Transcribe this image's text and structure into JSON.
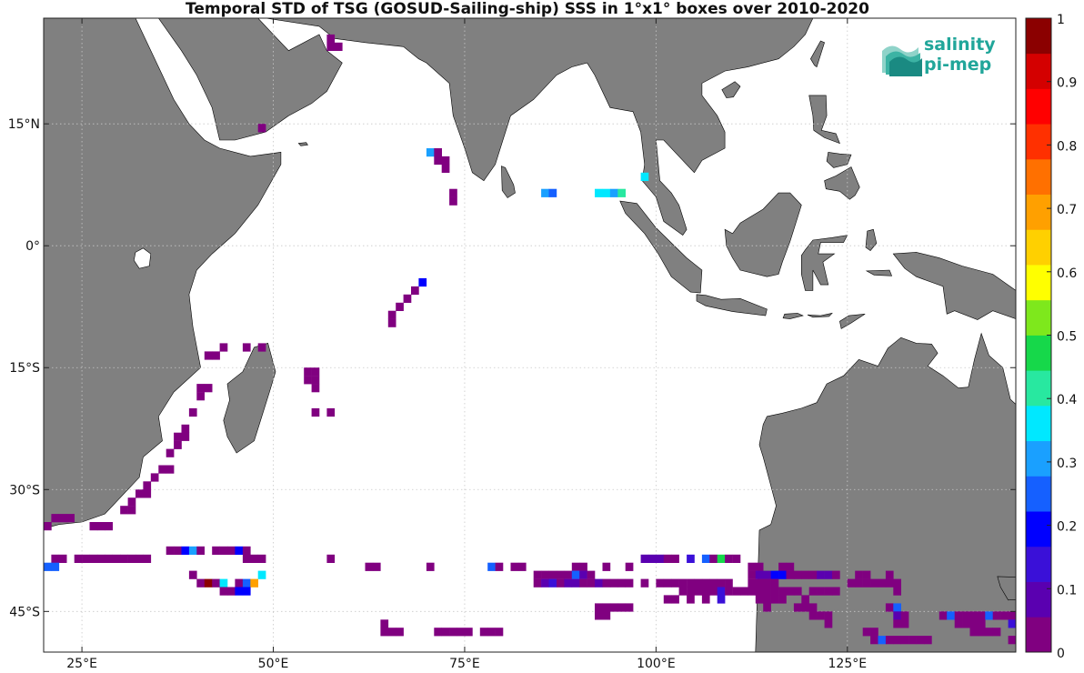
{
  "title": "Temporal STD of TSG (GOSUD-Sailing-ship) SSS in 1°x1° boxes over 2010-2020",
  "logo": {
    "line1": "salinity",
    "line2": "pi-mep"
  },
  "axes": {
    "lon_range": [
      20,
      147
    ],
    "lat_range": [
      -50,
      28
    ],
    "x_ticks": [
      {
        "v": 25,
        "label": "25°E"
      },
      {
        "v": 50,
        "label": "50°E"
      },
      {
        "v": 75,
        "label": "75°E"
      },
      {
        "v": 100,
        "label": "100°E"
      },
      {
        "v": 125,
        "label": "125°E"
      }
    ],
    "y_ticks": [
      {
        "v": 15,
        "label": "15°N"
      },
      {
        "v": 0,
        "label": "0°"
      },
      {
        "v": -15,
        "label": "15°S"
      },
      {
        "v": -30,
        "label": "30°S"
      },
      {
        "v": -45,
        "label": "45°S"
      }
    ],
    "grid": true
  },
  "colorbar": {
    "min": 0,
    "max": 1,
    "tick_labels": [
      "0",
      "0.1",
      "0.2",
      "0.3",
      "0.4",
      "0.5",
      "0.6",
      "0.7",
      "0.8",
      "0.9",
      "1"
    ],
    "colors": [
      "#800080",
      "#5a00b0",
      "#3a10d8",
      "#0000ff",
      "#1560ff",
      "#1aa0ff",
      "#00e8ff",
      "#28e8a0",
      "#16d84a",
      "#7ee81c",
      "#ffff00",
      "#ffd000",
      "#ffa000",
      "#ff7000",
      "#ff3000",
      "#ff0000",
      "#d40000",
      "#8b0000"
    ]
  },
  "land_color": "#808080",
  "cells": [
    [
      57,
      25,
      0.02
    ],
    [
      57,
      24,
      0.02
    ],
    [
      58,
      24,
      0.02
    ],
    [
      48,
      14,
      0.02
    ],
    [
      70,
      11,
      0.3
    ],
    [
      71,
      11,
      0.02
    ],
    [
      71,
      10,
      0.02
    ],
    [
      72,
      10,
      0.02
    ],
    [
      72,
      9,
      0.02
    ],
    [
      73,
      6,
      0.02
    ],
    [
      73,
      5,
      0.02
    ],
    [
      85,
      6,
      0.3
    ],
    [
      86,
      6,
      0.25
    ],
    [
      92,
      6,
      0.35
    ],
    [
      93,
      6,
      0.35
    ],
    [
      94,
      6,
      0.3
    ],
    [
      95,
      6,
      0.4
    ],
    [
      98,
      8,
      0.35
    ],
    [
      69,
      -5,
      0.2
    ],
    [
      68,
      -6,
      0.02
    ],
    [
      67,
      -7,
      0.02
    ],
    [
      66,
      -8,
      0.02
    ],
    [
      65,
      -9,
      0.02
    ],
    [
      65,
      -10,
      0.02
    ],
    [
      41,
      -14,
      0.02
    ],
    [
      42,
      -14,
      0.02
    ],
    [
      43,
      -13,
      0.02
    ],
    [
      46,
      -13,
      0.02
    ],
    [
      48,
      -13,
      0.02
    ],
    [
      54,
      -16,
      0.02
    ],
    [
      55,
      -16,
      0.02
    ],
    [
      54,
      -17,
      0.02
    ],
    [
      55,
      -17,
      0.02
    ],
    [
      55,
      -18,
      0.02
    ],
    [
      40,
      -18,
      0.02
    ],
    [
      41,
      -18,
      0.02
    ],
    [
      40,
      -19,
      0.02
    ],
    [
      39,
      -21,
      0.02
    ],
    [
      55,
      -21,
      0.05
    ],
    [
      57,
      -21,
      0.02
    ],
    [
      38,
      -23,
      0.02
    ],
    [
      38,
      -24,
      0.02
    ],
    [
      37,
      -24,
      0.02
    ],
    [
      37,
      -25,
      0.02
    ],
    [
      36,
      -26,
      0.02
    ],
    [
      36,
      -28,
      0.02
    ],
    [
      35,
      -28,
      0.02
    ],
    [
      34,
      -29,
      0.02
    ],
    [
      33,
      -30,
      0.02
    ],
    [
      33,
      -31,
      0.02
    ],
    [
      32,
      -31,
      0.02
    ],
    [
      31,
      -32,
      0.02
    ],
    [
      31,
      -33,
      0.02
    ],
    [
      30,
      -33,
      0.02
    ],
    [
      21,
      -34,
      0.02
    ],
    [
      22,
      -34,
      0.02
    ],
    [
      23,
      -34,
      0.02
    ],
    [
      20,
      -35,
      0.02
    ],
    [
      26,
      -35,
      0.02
    ],
    [
      27,
      -35,
      0.02
    ],
    [
      28,
      -35,
      0.02
    ],
    [
      36,
      -38,
      0.02
    ],
    [
      37,
      -38,
      0.02
    ],
    [
      38,
      -38,
      0.22
    ],
    [
      39,
      -38,
      0.3
    ],
    [
      40,
      -38,
      0.02
    ],
    [
      42,
      -38,
      0.02
    ],
    [
      43,
      -38,
      0.02
    ],
    [
      44,
      -38,
      0.02
    ],
    [
      45,
      -38,
      0.2
    ],
    [
      46,
      -38,
      0.05
    ],
    [
      21,
      -39,
      0.02
    ],
    [
      22,
      -39,
      0.02
    ],
    [
      24,
      -39,
      0.02
    ],
    [
      25,
      -39,
      0.02
    ],
    [
      26,
      -39,
      0.02
    ],
    [
      27,
      -39,
      0.02
    ],
    [
      28,
      -39,
      0.02
    ],
    [
      29,
      -39,
      0.02
    ],
    [
      30,
      -39,
      0.02
    ],
    [
      31,
      -39,
      0.02
    ],
    [
      32,
      -39,
      0.02
    ],
    [
      33,
      -39,
      0.02
    ],
    [
      46,
      -39,
      0.02
    ],
    [
      47,
      -39,
      0.02
    ],
    [
      48,
      -39,
      0.02
    ],
    [
      57,
      -39,
      0.02
    ],
    [
      20,
      -40,
      0.25
    ],
    [
      21,
      -40,
      0.25
    ],
    [
      62,
      -40,
      0.02
    ],
    [
      63,
      -40,
      0.02
    ],
    [
      70,
      -40,
      0.02
    ],
    [
      78,
      -40,
      0.25
    ],
    [
      79,
      -40,
      0.02
    ],
    [
      81,
      -40,
      0.02
    ],
    [
      82,
      -40,
      0.02
    ],
    [
      39,
      -41,
      0.02
    ],
    [
      48,
      -41,
      0.35
    ],
    [
      40,
      -42,
      0.02
    ],
    [
      41,
      -42,
      0.95
    ],
    [
      42,
      -42,
      0.02
    ],
    [
      43,
      -42,
      0.35
    ],
    [
      45,
      -42,
      0.02
    ],
    [
      46,
      -42,
      0.25
    ],
    [
      47,
      -42,
      0.7
    ],
    [
      43,
      -43,
      0.05
    ],
    [
      44,
      -43,
      0.05
    ],
    [
      45,
      -43,
      0.2
    ],
    [
      46,
      -43,
      0.2
    ],
    [
      98,
      -39,
      0.1
    ],
    [
      99,
      -39,
      0.1
    ],
    [
      100,
      -39,
      0.1
    ],
    [
      101,
      -39,
      0.02
    ],
    [
      102,
      -39,
      0.02
    ],
    [
      104,
      -39,
      0.15
    ],
    [
      106,
      -39,
      0.25
    ],
    [
      107,
      -39,
      0.02
    ],
    [
      108,
      -39,
      0.45
    ],
    [
      109,
      -39,
      0.02
    ],
    [
      110,
      -39,
      0.02
    ],
    [
      89,
      -40,
      0.02
    ],
    [
      90,
      -40,
      0.02
    ],
    [
      93,
      -40,
      0.02
    ],
    [
      96,
      -40,
      0.02
    ],
    [
      112,
      -40,
      0.02
    ],
    [
      113,
      -40,
      0.02
    ],
    [
      116,
      -40,
      0.02
    ],
    [
      117,
      -40,
      0.02
    ],
    [
      84,
      -41,
      0.02
    ],
    [
      85,
      -41,
      0.02
    ],
    [
      86,
      -41,
      0.02
    ],
    [
      87,
      -41,
      0.02
    ],
    [
      88,
      -41,
      0.02
    ],
    [
      89,
      -41,
      0.25
    ],
    [
      90,
      -41,
      0.1
    ],
    [
      91,
      -41,
      0.02
    ],
    [
      112,
      -41,
      0.02
    ],
    [
      113,
      -41,
      0.1
    ],
    [
      114,
      -41,
      0.1
    ],
    [
      115,
      -41,
      0.2
    ],
    [
      116,
      -41,
      0.2
    ],
    [
      117,
      -41,
      0.02
    ],
    [
      118,
      -41,
      0.02
    ],
    [
      119,
      -41,
      0.02
    ],
    [
      120,
      -41,
      0.02
    ],
    [
      121,
      -41,
      0.1
    ],
    [
      122,
      -41,
      0.1
    ],
    [
      123,
      -41,
      0.02
    ],
    [
      126,
      -41,
      0.02
    ],
    [
      127,
      -41,
      0.02
    ],
    [
      130,
      -41,
      0.02
    ],
    [
      84,
      -42,
      0.02
    ],
    [
      85,
      -42,
      0.1
    ],
    [
      86,
      -42,
      0.15
    ],
    [
      87,
      -42,
      0.02
    ],
    [
      88,
      -42,
      0.1
    ],
    [
      89,
      -42,
      0.1
    ],
    [
      90,
      -42,
      0.02
    ],
    [
      91,
      -42,
      0.05
    ],
    [
      92,
      -42,
      0.1
    ],
    [
      93,
      -42,
      0.05
    ],
    [
      94,
      -42,
      0.02
    ],
    [
      95,
      -42,
      0.02
    ],
    [
      96,
      -42,
      0.02
    ],
    [
      98,
      -42,
      0.05
    ],
    [
      100,
      -42,
      0.02
    ],
    [
      101,
      -42,
      0.02
    ],
    [
      102,
      -42,
      0.02
    ],
    [
      103,
      -42,
      0.02
    ],
    [
      104,
      -42,
      0.02
    ],
    [
      105,
      -42,
      0.02
    ],
    [
      106,
      -42,
      0.02
    ],
    [
      107,
      -42,
      0.02
    ],
    [
      108,
      -42,
      0.05
    ],
    [
      109,
      -42,
      0.05
    ],
    [
      112,
      -42,
      0.02
    ],
    [
      113,
      -42,
      0.02
    ],
    [
      114,
      -42,
      0.02
    ],
    [
      115,
      -42,
      0.02
    ],
    [
      125,
      -42,
      0.02
    ],
    [
      126,
      -42,
      0.02
    ],
    [
      127,
      -42,
      0.02
    ],
    [
      128,
      -42,
      0.02
    ],
    [
      129,
      -42,
      0.02
    ],
    [
      130,
      -42,
      0.02
    ],
    [
      131,
      -42,
      0.02
    ],
    [
      103,
      -43,
      0.02
    ],
    [
      104,
      -43,
      0.02
    ],
    [
      105,
      -43,
      0.02
    ],
    [
      106,
      -43,
      0.02
    ],
    [
      107,
      -43,
      0.02
    ],
    [
      108,
      -43,
      0.15
    ],
    [
      109,
      -43,
      0.05
    ],
    [
      110,
      -43,
      0.02
    ],
    [
      111,
      -43,
      0.02
    ],
    [
      112,
      -43,
      0.02
    ],
    [
      113,
      -43,
      0.02
    ],
    [
      114,
      -43,
      0.02
    ],
    [
      115,
      -43,
      0.02
    ],
    [
      116,
      -43,
      0.02
    ],
    [
      117,
      -43,
      0.02
    ],
    [
      118,
      -43,
      0.02
    ],
    [
      120,
      -43,
      0.02
    ],
    [
      121,
      -43,
      0.02
    ],
    [
      122,
      -43,
      0.02
    ],
    [
      123,
      -43,
      0.02
    ],
    [
      131,
      -43,
      0.02
    ],
    [
      101,
      -44,
      0.02
    ],
    [
      102,
      -44,
      0.02
    ],
    [
      104,
      -44,
      0.05
    ],
    [
      106,
      -44,
      0.02
    ],
    [
      108,
      -44,
      0.15
    ],
    [
      113,
      -44,
      0.02
    ],
    [
      114,
      -44,
      0.02
    ],
    [
      115,
      -44,
      0.02
    ],
    [
      116,
      -44,
      0.02
    ],
    [
      119,
      -44,
      0.02
    ],
    [
      92,
      -45,
      0.02
    ],
    [
      93,
      -45,
      0.02
    ],
    [
      94,
      -45,
      0.02
    ],
    [
      95,
      -45,
      0.02
    ],
    [
      96,
      -45,
      0.02
    ],
    [
      114,
      -45,
      0.02
    ],
    [
      118,
      -45,
      0.02
    ],
    [
      119,
      -45,
      0.02
    ],
    [
      120,
      -45,
      0.02
    ],
    [
      130,
      -45,
      0.02
    ],
    [
      131,
      -45,
      0.25
    ],
    [
      92,
      -46,
      0.02
    ],
    [
      93,
      -46,
      0.02
    ],
    [
      120,
      -46,
      0.02
    ],
    [
      121,
      -46,
      0.02
    ],
    [
      122,
      -46,
      0.02
    ],
    [
      131,
      -46,
      0.1
    ],
    [
      122,
      -47,
      0.02
    ],
    [
      132,
      -46,
      0.02
    ],
    [
      137,
      -46,
      0.02
    ],
    [
      138,
      -46,
      0.25
    ],
    [
      139,
      -46,
      0.02
    ],
    [
      140,
      -46,
      0.02
    ],
    [
      141,
      -46,
      0.02
    ],
    [
      142,
      -46,
      0.02
    ],
    [
      143,
      -46,
      0.25
    ],
    [
      144,
      -46,
      0.02
    ],
    [
      145,
      -46,
      0.02
    ],
    [
      146,
      -46,
      0.02
    ],
    [
      131,
      -47,
      0.02
    ],
    [
      132,
      -47,
      0.02
    ],
    [
      139,
      -47,
      0.02
    ],
    [
      140,
      -47,
      0.02
    ],
    [
      141,
      -47,
      0.02
    ],
    [
      142,
      -47,
      0.02
    ],
    [
      146,
      -47,
      0.15
    ],
    [
      64,
      -47,
      0.02
    ],
    [
      64,
      -48,
      0.02
    ],
    [
      65,
      -48,
      0.02
    ],
    [
      66,
      -48,
      0.02
    ],
    [
      71,
      -48,
      0.02
    ],
    [
      72,
      -48,
      0.02
    ],
    [
      73,
      -48,
      0.02
    ],
    [
      74,
      -48,
      0.02
    ],
    [
      75,
      -48,
      0.02
    ],
    [
      77,
      -48,
      0.02
    ],
    [
      78,
      -48,
      0.02
    ],
    [
      79,
      -48,
      0.02
    ],
    [
      127,
      -48,
      0.02
    ],
    [
      128,
      -48,
      0.02
    ],
    [
      141,
      -48,
      0.02
    ],
    [
      142,
      -48,
      0.02
    ],
    [
      143,
      -48,
      0.02
    ],
    [
      144,
      -48,
      0.02
    ],
    [
      128,
      -49,
      0.02
    ],
    [
      129,
      -49,
      0.25
    ],
    [
      130,
      -49,
      0.02
    ],
    [
      131,
      -49,
      0.02
    ],
    [
      132,
      -49,
      0.02
    ],
    [
      133,
      -49,
      0.02
    ],
    [
      134,
      -49,
      0.02
    ],
    [
      135,
      -49,
      0.02
    ],
    [
      146,
      -49,
      0.02
    ]
  ]
}
